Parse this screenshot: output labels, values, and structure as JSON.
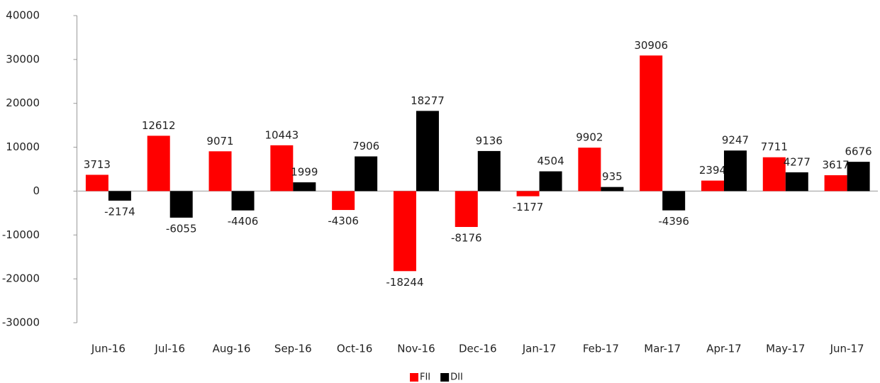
{
  "chart_data": {
    "type": "bar",
    "categories": [
      "Jun-16",
      "Jul-16",
      "Aug-16",
      "Sep-16",
      "Oct-16",
      "Nov-16",
      "Dec-16",
      "Jan-17",
      "Feb-17",
      "Mar-17",
      "Apr-17",
      "May-17",
      "Jun-17"
    ],
    "series": [
      {
        "name": "FII",
        "color": "#ff0000",
        "values": [
          3713,
          12612,
          9071,
          10443,
          -4306,
          -18244,
          -8176,
          -1177,
          9902,
          30906,
          2394,
          7711,
          3617
        ]
      },
      {
        "name": "DII",
        "color": "#000000",
        "values": [
          -2174,
          -6055,
          -4406,
          1999,
          7906,
          18277,
          9136,
          4504,
          935,
          -4396,
          9247,
          4277,
          6676
        ]
      }
    ],
    "ylim": [
      -30000,
      40000
    ],
    "yticks": [
      -30000,
      -20000,
      -10000,
      0,
      10000,
      20000,
      30000,
      40000
    ],
    "grid": false,
    "legend": "bottom"
  }
}
